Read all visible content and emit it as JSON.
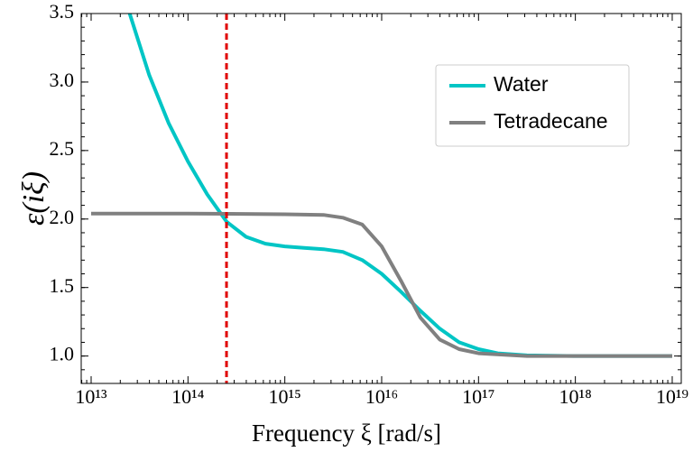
{
  "chart_data": {
    "type": "line",
    "xlabel": "Frequency ξ [rad/s]",
    "ylabel": "ε(iξ)",
    "xscale": "log",
    "xlim": [
      7900000000000.0,
      1.24e+19
    ],
    "ylim": [
      0.8,
      3.5
    ],
    "xticks": [
      {
        "value": 10000000000000.0,
        "label": "10¹³"
      },
      {
        "value": 100000000000000.0,
        "label": "10¹⁴"
      },
      {
        "value": 1000000000000000.0,
        "label": "10¹⁵"
      },
      {
        "value": 1e+16,
        "label": "10¹⁶"
      },
      {
        "value": 1e+17,
        "label": "10¹⁷"
      },
      {
        "value": 1e+18,
        "label": "10¹⁸"
      },
      {
        "value": 1e+19,
        "label": "10¹⁹"
      }
    ],
    "yticks": [
      {
        "value": 1,
        "label": "1.0"
      },
      1.5,
      {
        "value": 2,
        "label": "2.0"
      },
      2.5,
      {
        "value": 3,
        "label": "3.0"
      },
      3.5
    ],
    "vline": {
      "x": 250000000000000.0,
      "color": "#e00000"
    },
    "legend": "upper right",
    "series": [
      {
        "name": "Water",
        "color": "#00c5c5",
        "x": [
          25000000000000.0,
          39800000000000.0,
          63100000000000.0,
          100000000000000.0,
          158000000000000.0,
          251000000000000.0,
          398000000000000.0,
          631000000000000.0,
          1000000000000000.0,
          1580000000000000.0,
          2510000000000000.0,
          3980000000000000.0,
          6310000000000000.0,
          1e+16,
          1.58e+16,
          2.51e+16,
          3.98e+16,
          6.31e+16,
          1e+17,
          1.58e+17,
          3.16e+17,
          1e+18,
          1e+19
        ],
        "values": [
          3.5,
          3.05,
          2.7,
          2.42,
          2.18,
          1.98,
          1.87,
          1.82,
          1.8,
          1.79,
          1.78,
          1.76,
          1.7,
          1.6,
          1.47,
          1.33,
          1.2,
          1.1,
          1.05,
          1.02,
          1.005,
          1.0,
          1.0
        ]
      },
      {
        "name": "Tetradecane",
        "color": "#808080",
        "x": [
          10000000000000.0,
          100000000000000.0,
          1000000000000000.0,
          2510000000000000.0,
          3980000000000000.0,
          6310000000000000.0,
          1e+16,
          1.58e+16,
          2.51e+16,
          3.98e+16,
          6.31e+16,
          1e+17,
          3.16e+17,
          1e+18,
          1e+19
        ],
        "values": [
          2.04,
          2.04,
          2.035,
          2.03,
          2.01,
          1.96,
          1.8,
          1.55,
          1.28,
          1.12,
          1.05,
          1.02,
          1.0,
          1.0,
          1.0
        ]
      }
    ]
  }
}
